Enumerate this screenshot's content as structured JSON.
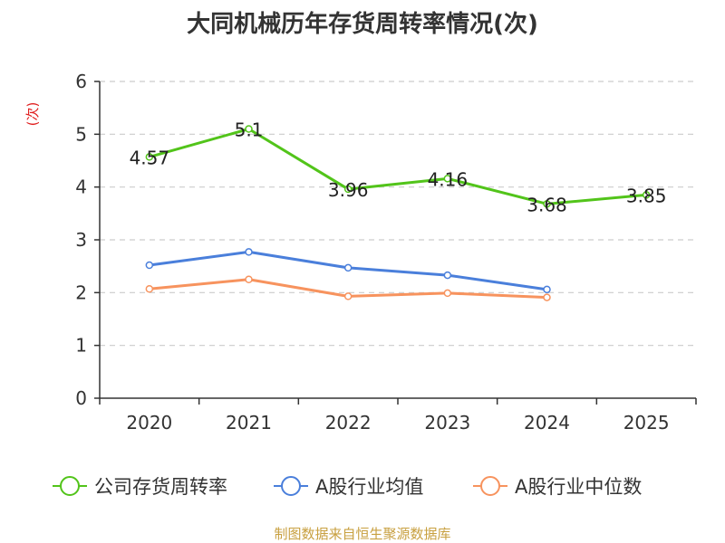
{
  "colors": {
    "company": "#52c41a",
    "industry_avg": "#4a7fdb",
    "industry_median": "#f7935e",
    "title": "#333333",
    "ylabel": "#e02020",
    "source": "#c8a040",
    "axis": "#333333",
    "grid": "#cccccc"
  },
  "source_note": "制图数据来自恒生聚源数据库",
  "chart_data": {
    "type": "line",
    "title": "大同机械历年存货周转率情况(次)",
    "xlabel": "",
    "ylabel": "(次)",
    "categories": [
      "2020",
      "2021",
      "2022",
      "2023",
      "2024",
      "2025"
    ],
    "ylim": [
      0,
      6
    ],
    "yticks": [
      "0",
      "1",
      "2",
      "3",
      "4",
      "5",
      "6"
    ],
    "grid": true,
    "legend_position": "bottom-center",
    "series": [
      {
        "name": "公司存货周转率",
        "color_key": "company",
        "values": [
          4.57,
          5.1,
          3.96,
          4.16,
          3.68,
          3.85
        ],
        "labels": [
          "4.57",
          "5.1",
          "3.96",
          "4.16",
          "3.68",
          "3.85"
        ],
        "show_labels": true
      },
      {
        "name": "A股行业均值",
        "color_key": "industry_avg",
        "values": [
          2.52,
          2.77,
          2.47,
          2.33,
          2.06,
          null
        ],
        "show_labels": false
      },
      {
        "name": "A股行业中位数",
        "color_key": "industry_median",
        "values": [
          2.07,
          2.25,
          1.93,
          1.99,
          1.91,
          null
        ],
        "show_labels": false
      }
    ]
  }
}
